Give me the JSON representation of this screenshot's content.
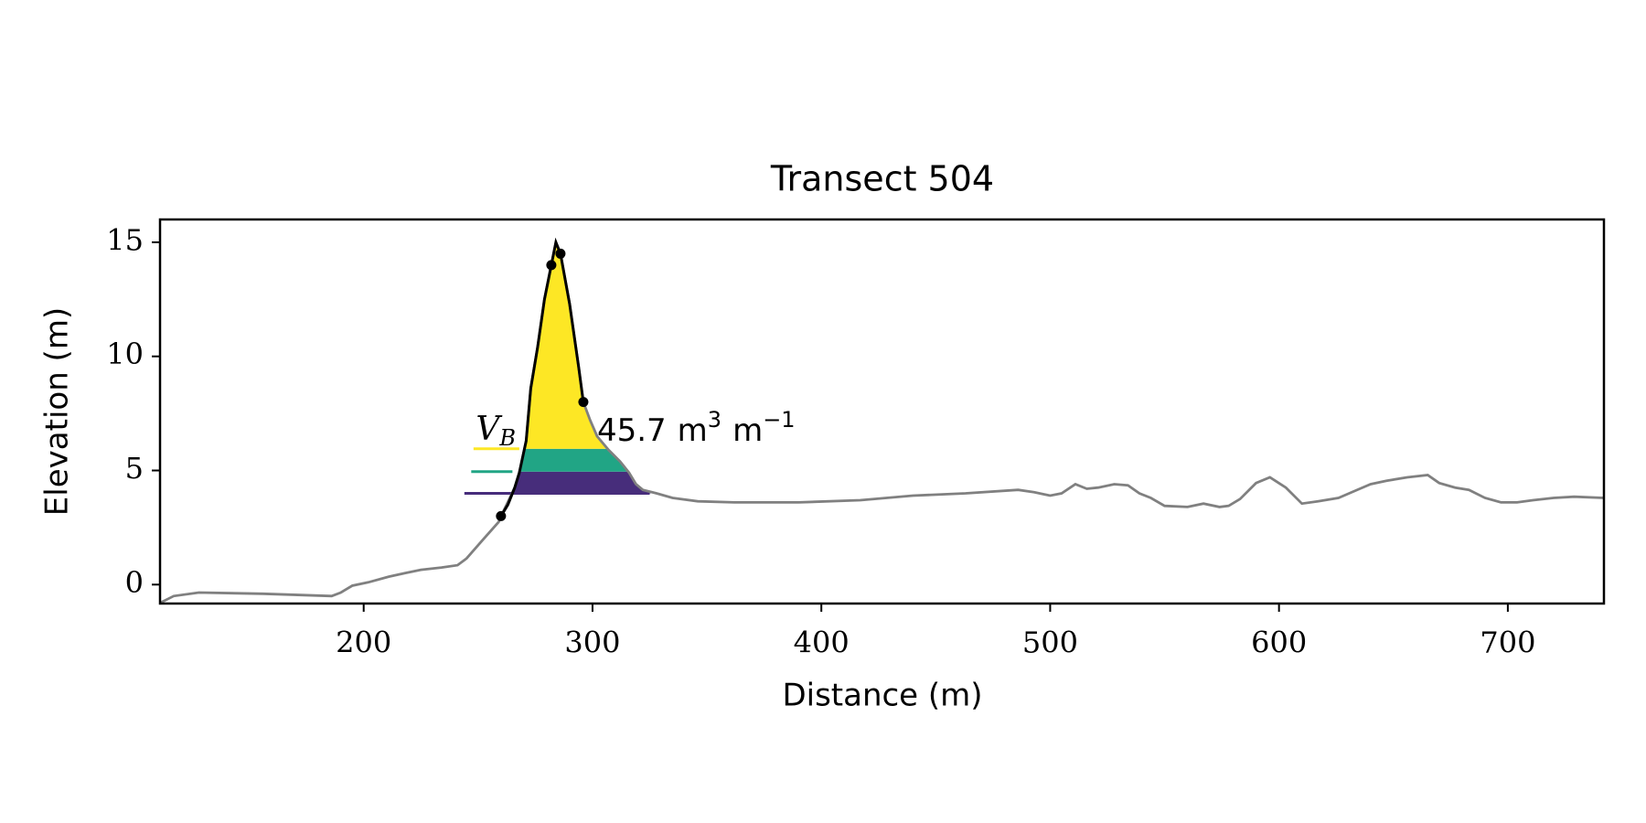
{
  "chart_data": {
    "type": "line",
    "title": "Transect 504",
    "xlabel": "Distance (m)",
    "ylabel": "Elevation (m)",
    "xlim": [
      111,
      742
    ],
    "ylim": [
      -0.83,
      16.0
    ],
    "xticks": [
      200,
      300,
      400,
      500,
      600,
      700
    ],
    "yticks": [
      0,
      5,
      10,
      15
    ],
    "profile": {
      "color": "#808080",
      "x": [
        111,
        117,
        128,
        156,
        186,
        190,
        195,
        202,
        211,
        218,
        225,
        234,
        241,
        245,
        252,
        259,
        260,
        266,
        268,
        271,
        273,
        276,
        279,
        282,
        284,
        286,
        290,
        294,
        296,
        299,
        302,
        307,
        312,
        316,
        319,
        322,
        328,
        335,
        346,
        362,
        390,
        417,
        440,
        463,
        486,
        493,
        500,
        505,
        511,
        516,
        521,
        528,
        534,
        539,
        544,
        550,
        560,
        567,
        574,
        578,
        583,
        590,
        596,
        603,
        610,
        617,
        626,
        633,
        640,
        647,
        656,
        665,
        670,
        677,
        683,
        690,
        697,
        704,
        711,
        720,
        729,
        742
      ],
      "y": [
        -0.8,
        -0.5,
        -0.35,
        -0.4,
        -0.5,
        -0.35,
        -0.05,
        0.1,
        0.35,
        0.5,
        0.65,
        0.75,
        0.85,
        1.15,
        1.95,
        2.75,
        3.0,
        4.25,
        4.9,
        6.3,
        8.6,
        10.4,
        12.5,
        14.0,
        15.0,
        14.5,
        12.3,
        9.5,
        8.0,
        7.2,
        6.5,
        5.9,
        5.4,
        4.9,
        4.4,
        4.15,
        4.0,
        3.8,
        3.65,
        3.6,
        3.6,
        3.7,
        3.9,
        4.0,
        4.15,
        4.05,
        3.9,
        4.0,
        4.4,
        4.2,
        4.25,
        4.4,
        4.35,
        4.0,
        3.8,
        3.45,
        3.4,
        3.55,
        3.4,
        3.45,
        3.75,
        4.45,
        4.7,
        4.25,
        3.55,
        3.65,
        3.8,
        4.1,
        4.4,
        4.55,
        4.7,
        4.8,
        4.45,
        4.25,
        4.15,
        3.8,
        3.6,
        3.6,
        3.7,
        3.8,
        3.85,
        3.8
      ]
    },
    "dune": {
      "color": "#000000",
      "x": [
        260,
        263,
        266,
        268,
        271,
        273,
        276,
        279,
        282,
        284,
        286,
        290,
        294,
        296
      ],
      "y": [
        3.0,
        3.5,
        4.25,
        4.9,
        6.3,
        8.6,
        10.4,
        12.5,
        14.0,
        15.0,
        14.5,
        12.3,
        9.5,
        8.0
      ]
    },
    "points": {
      "color": "#000000",
      "x": [
        260,
        282,
        286,
        296
      ],
      "y": [
        3.0,
        14.0,
        14.5,
        8.0
      ]
    },
    "bands": [
      {
        "color": "#472d7b",
        "level": 4.0,
        "x_start": 244,
        "x_end": 325
      },
      {
        "color": "#21a585",
        "level": 4.95,
        "x_start": 247,
        "x_end": 265
      },
      {
        "color": "#fde725",
        "level": 5.95,
        "x_start": 248,
        "x_end": 268
      }
    ],
    "annotation": {
      "symbol": "V",
      "subscript": "B",
      "x": 249,
      "y": 6.7,
      "value": 45.7,
      "value_x": 302,
      "unit_parts": [
        {
          "base": "m",
          "sup": "3"
        },
        {
          "base": "m",
          "sup": "−1"
        }
      ]
    }
  }
}
